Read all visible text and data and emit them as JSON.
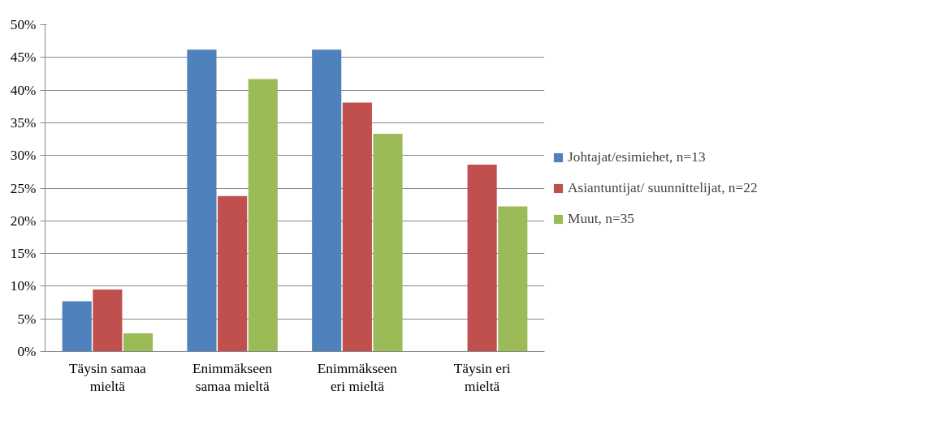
{
  "chart_data": {
    "type": "bar",
    "categories": [
      "Täysin samaa mieltä",
      "Enimmäkseen samaa mieltä",
      "Enimmäkseen eri mieltä",
      "Täysin eri mieltä"
    ],
    "series": [
      {
        "name": "Johtajat/esimiehet, n=13",
        "color": "#4f81bd",
        "values": [
          7.7,
          46.2,
          46.2,
          0
        ]
      },
      {
        "name": "Asiantuntijat/ suunnittelijat, n=22",
        "color": "#c0504d",
        "values": [
          9.5,
          23.8,
          38.1,
          28.6
        ]
      },
      {
        "name": "Muut, n=35",
        "color": "#9bbb59",
        "values": [
          2.8,
          41.7,
          33.3,
          22.2
        ]
      }
    ],
    "ylim": [
      0,
      50
    ],
    "yticks": [
      {
        "value": 0,
        "label": "0%"
      },
      {
        "value": 5,
        "label": "5%"
      },
      {
        "value": 10,
        "label": "10%"
      },
      {
        "value": 15,
        "label": "15%"
      },
      {
        "value": 20,
        "label": "20%"
      },
      {
        "value": 25,
        "label": "25%"
      },
      {
        "value": 30,
        "label": "30%"
      },
      {
        "value": 35,
        "label": "35%"
      },
      {
        "value": 40,
        "label": "40%"
      },
      {
        "value": 45,
        "label": "45%"
      },
      {
        "value": 50,
        "label": "50%"
      }
    ],
    "grid": "y",
    "legend": "right"
  }
}
